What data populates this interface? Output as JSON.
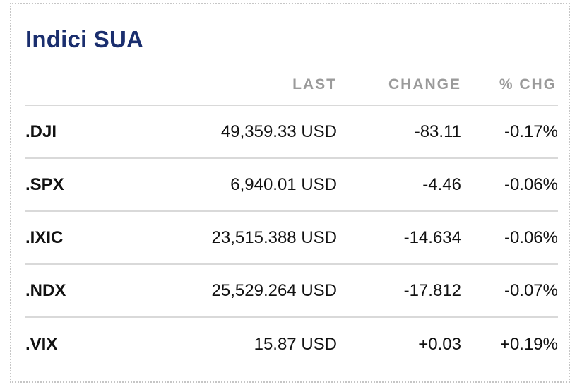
{
  "widget": {
    "title": "Indici SUA"
  },
  "columns": {
    "last": "LAST",
    "change": "CHANGE",
    "pct": "% CHG"
  },
  "colors": {
    "title": "#1a2e6e",
    "negative": "#c0392b",
    "positive": "#3aa76d",
    "header": "#9a9a9a"
  },
  "rows": [
    {
      "symbol": ".DJI",
      "last": "49,359.33 USD",
      "change": "-83.11",
      "pct": "-0.17%",
      "direction": "down"
    },
    {
      "symbol": ".SPX",
      "last": "6,940.01 USD",
      "change": "-4.46",
      "pct": "-0.06%",
      "direction": "down"
    },
    {
      "symbol": ".IXIC",
      "last": "23,515.388 USD",
      "change": "-14.634",
      "pct": "-0.06%",
      "direction": "down"
    },
    {
      "symbol": ".NDX",
      "last": "25,529.264 USD",
      "change": "-17.812",
      "pct": "-0.07%",
      "direction": "down"
    },
    {
      "symbol": ".VIX",
      "last": "15.87 USD",
      "change": "+0.03",
      "pct": "+0.19%",
      "direction": "up"
    }
  ]
}
